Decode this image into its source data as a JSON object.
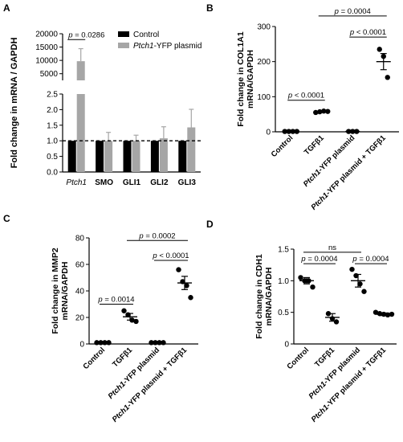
{
  "panels": [
    "A",
    "B",
    "C",
    "D"
  ],
  "chart_data": [
    {
      "panel": "A",
      "type": "bar",
      "ylabel": "Fold change in mRNA / GAPDH",
      "broken_axis": true,
      "ylim_upper": [
        2500,
        20000
      ],
      "yticks_upper": [
        "20000",
        "15000",
        "10000",
        "5000"
      ],
      "ylim_lower": [
        0,
        2.5
      ],
      "yticks_lower": [
        "2.5",
        "2.0",
        "1.5",
        "1.0",
        "0.5",
        "0.0"
      ],
      "reference_line": 1.0,
      "categories": [
        "Ptch1",
        "SMO",
        "GLI1",
        "GLI2",
        "GLI3"
      ],
      "italic_categories": [
        "Ptch1"
      ],
      "legend": {
        "placement": "top-right",
        "entries": [
          "Control",
          "Ptch1-YFP plasmid"
        ],
        "italic_part": "Ptch1"
      },
      "series": [
        {
          "name": "Control",
          "color": "#000000",
          "values": [
            1.0,
            1.0,
            1.0,
            1.0,
            1.0
          ],
          "errors": [
            0,
            0,
            0,
            0,
            0
          ]
        },
        {
          "name": "Ptch1-YFP plasmid",
          "color": "#a6a6a6",
          "values": [
            9700,
            1.0,
            1.0,
            1.08,
            1.43
          ],
          "errors": [
            4700,
            0.27,
            0.18,
            0.37,
            0.58
          ]
        }
      ],
      "annotations": [
        {
          "text": "p = 0.0286",
          "between": [
            "Ptch1",
            "Ptch1"
          ]
        }
      ]
    },
    {
      "panel": "B",
      "type": "scatter",
      "ylabel": "Fold change in COL1A1 mRNA/GAPDH",
      "ylim": [
        0,
        300
      ],
      "yticks": [
        "0",
        "100",
        "200",
        "300"
      ],
      "categories": [
        "Control",
        "TGFβ1",
        "Ptch1-YFP plasmid",
        "Ptch1-YFP plasmid + TGFβ1"
      ],
      "groups": [
        {
          "points": [
            1,
            1,
            1,
            1
          ],
          "mean": 1,
          "sem": 0
        },
        {
          "points": [
            55,
            57,
            59,
            58
          ],
          "mean": 57,
          "sem": 1.5
        },
        {
          "points": [
            1,
            1,
            1
          ],
          "mean": 1,
          "sem": 0
        },
        {
          "points": [
            235,
            215,
            155
          ],
          "mean": 200,
          "sem": 23
        }
      ],
      "annotations": [
        {
          "text": "p < 0.0001",
          "from": 0,
          "to": 1,
          "level": 90
        },
        {
          "text": "p = 0.0004",
          "from": 1,
          "to": 3,
          "level": 330
        },
        {
          "text": "p < 0.0001",
          "from": 2,
          "to": 3,
          "level": 270
        }
      ]
    },
    {
      "panel": "C",
      "type": "scatter",
      "ylabel": "Fold change in MMP2 mRNA/GAPDH",
      "ylim": [
        0,
        80
      ],
      "yticks": [
        "0",
        "20",
        "40",
        "60",
        "80"
      ],
      "categories": [
        "Control",
        "TGFβ1",
        "Ptch1-YFP plasmid",
        "Ptch1-YFP plasmid + TGFβ1"
      ],
      "groups": [
        {
          "points": [
            1,
            1,
            1,
            1
          ],
          "mean": 1,
          "sem": 0
        },
        {
          "points": [
            25,
            22,
            18,
            17
          ],
          "mean": 20.5,
          "sem": 2.5
        },
        {
          "points": [
            1,
            1,
            1,
            1
          ],
          "mean": 1,
          "sem": 0
        },
        {
          "points": [
            56,
            47,
            44,
            35
          ],
          "mean": 46,
          "sem": 5
        }
      ],
      "annotations": [
        {
          "text": "p = 0.0014",
          "from": 0,
          "to": 1,
          "level": 30
        },
        {
          "text": "p = 0.0002",
          "from": 1,
          "to": 3,
          "level": 78
        },
        {
          "text": "p < 0.0001",
          "from": 2,
          "to": 3,
          "level": 63
        }
      ]
    },
    {
      "panel": "D",
      "type": "scatter",
      "ylabel": "Fold change in CDH1 mRNA/GAPDH",
      "ylim": [
        0,
        1.5
      ],
      "yticks": [
        "0",
        "0.5",
        "1.0",
        "1.5"
      ],
      "categories": [
        "Control",
        "TGFβ1",
        "Ptch1-YFP plasmid",
        "Ptch1-YFP plasmid + TGFβ1"
      ],
      "groups": [
        {
          "points": [
            1.05,
            1.0,
            1.0,
            0.9
          ],
          "mean": 1.0,
          "sem": 0.05
        },
        {
          "points": [
            0.48,
            0.4,
            0.35
          ],
          "mean": 0.42,
          "sem": 0.06
        },
        {
          "points": [
            1.18,
            1.08,
            0.95,
            0.83
          ],
          "mean": 1.0,
          "sem": 0.1
        },
        {
          "points": [
            0.5,
            0.48,
            0.47,
            0.46,
            0.47
          ],
          "mean": 0.47,
          "sem": 0.02
        }
      ],
      "annotations": [
        {
          "text": "p = 0.0004",
          "from": 0,
          "to": 1,
          "level": 1.27
        },
        {
          "text": "p = 0.0004",
          "from": 2,
          "to": 3,
          "level": 1.27
        },
        {
          "text": "ns",
          "from": 0,
          "to": 2,
          "level": 1.45
        }
      ]
    }
  ]
}
